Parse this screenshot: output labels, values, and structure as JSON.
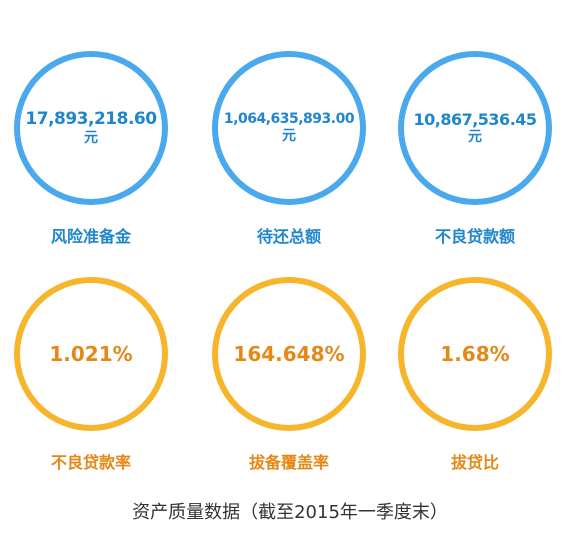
{
  "row1": [
    {
      "value": "17,893,218.60",
      "unit": "元",
      "label": "风险准备金"
    },
    {
      "value": "1,064,635,893.00",
      "unit": "元",
      "label": "待还总额"
    },
    {
      "value": "10,867,536.45",
      "unit": "元",
      "label": "不良贷款额"
    }
  ],
  "row2": [
    {
      "value": "1.021%",
      "label": "不良贷款率"
    },
    {
      "value": "164.648%",
      "label": "拔备覆盖率"
    },
    {
      "value": "1.68%",
      "label": "拔贷比"
    }
  ],
  "footer": "资产质量数据（截至2015年一季度末）",
  "colors": {
    "blue_ring": "#4aa8ec",
    "blue_text": "#1f86cd",
    "orange_ring": "#f7b52b",
    "orange_text": "#e58817"
  }
}
